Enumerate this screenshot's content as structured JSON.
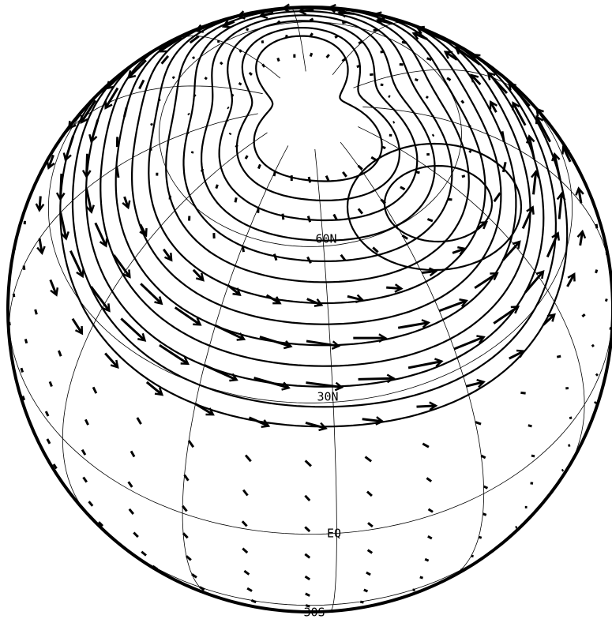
{
  "map": {
    "latitude_labels": [
      "60N",
      "30N",
      "EQ",
      "30S"
    ]
  }
}
